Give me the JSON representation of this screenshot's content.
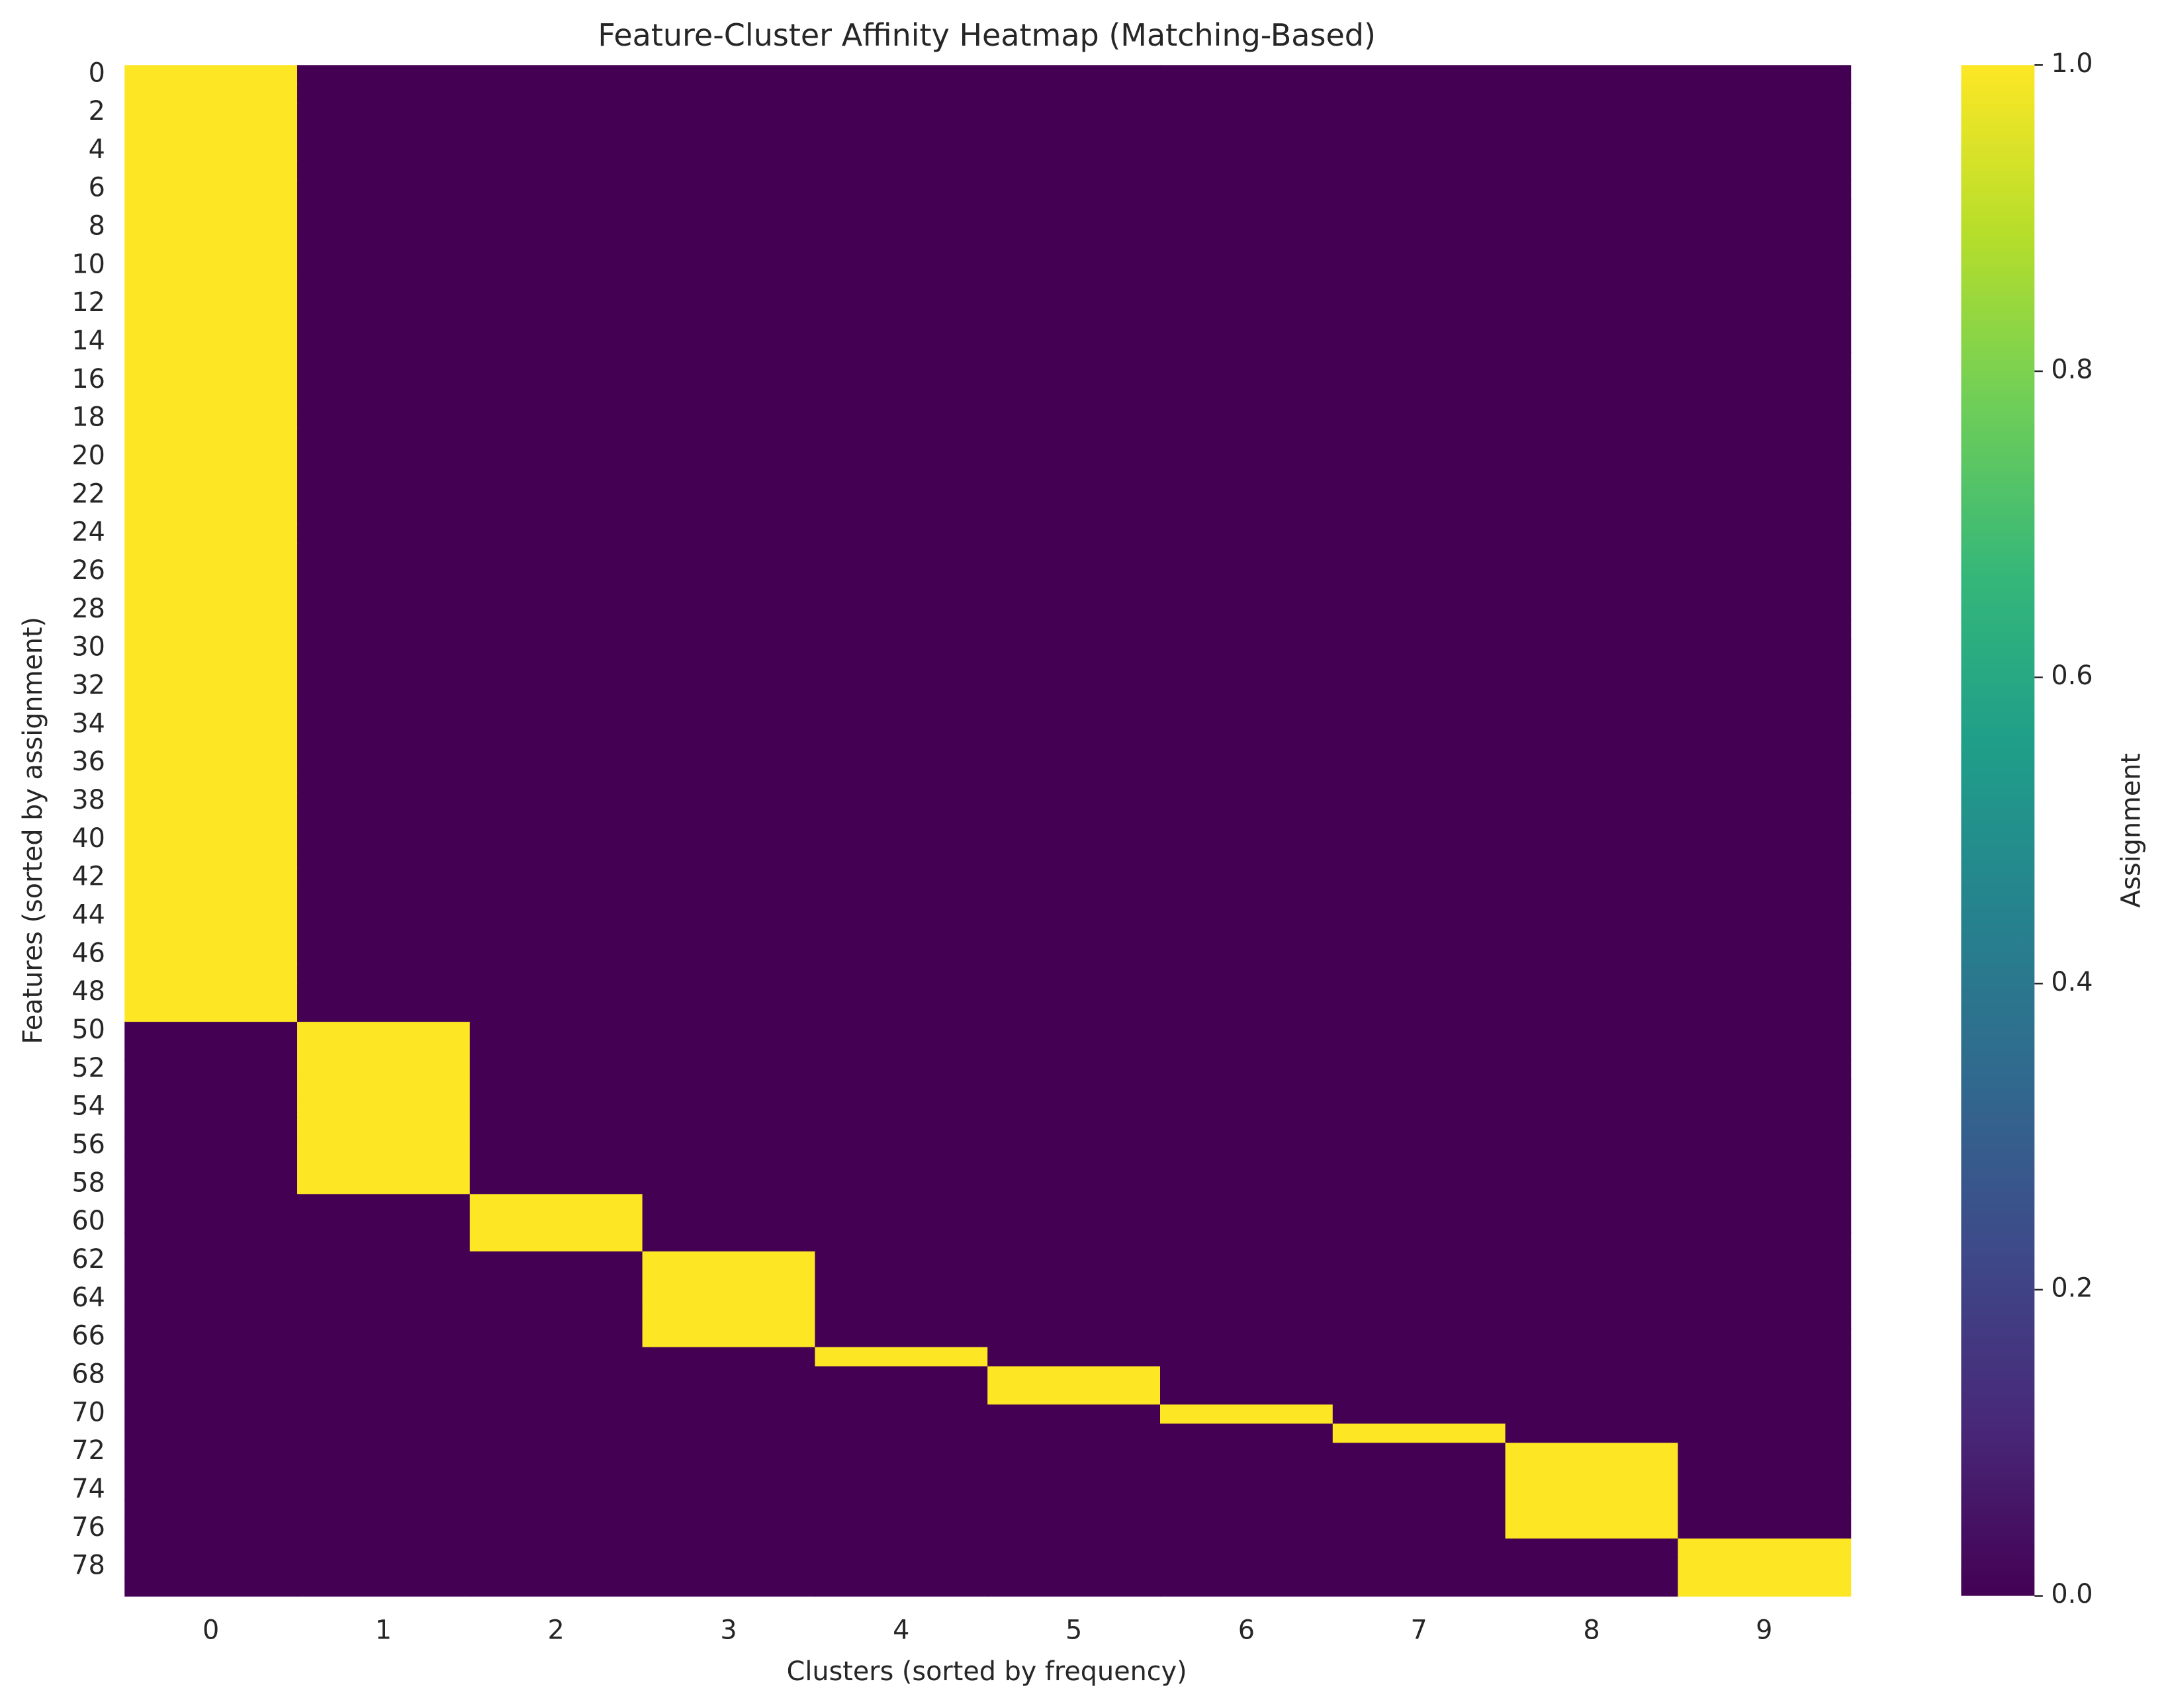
{
  "chart_data": {
    "type": "heatmap",
    "title": "Feature-Cluster Affinity Heatmap (Matching-Based)",
    "x_label": "Clusters (sorted by frequency)",
    "y_label": "Features (sorted by assignment)",
    "colorbar_label": "Assignment",
    "colormap": "viridis",
    "zlim": [
      0,
      1
    ],
    "zticks": [
      {
        "value": 0,
        "label": "0.0"
      },
      {
        "value": 0.2,
        "label": "0.2"
      },
      {
        "value": 0.4,
        "label": "0.4"
      },
      {
        "value": 0.6,
        "label": "0.6"
      },
      {
        "value": 0.8,
        "label": "0.8"
      },
      {
        "value": 1,
        "label": "1.0"
      }
    ],
    "x_categories": [
      "0",
      "1",
      "2",
      "3",
      "4",
      "5",
      "6",
      "7",
      "8",
      "9"
    ],
    "y_categories": [
      "0",
      null,
      "2",
      null,
      "4",
      null,
      "6",
      null,
      "8",
      null,
      "10",
      null,
      "12",
      null,
      "14",
      null,
      "16",
      null,
      "18",
      null,
      "20",
      null,
      "22",
      null,
      "24",
      null,
      "26",
      null,
      "28",
      null,
      "30",
      null,
      "32",
      null,
      "34",
      null,
      "36",
      null,
      "38",
      null,
      "40",
      null,
      "42",
      null,
      "44",
      null,
      "46",
      null,
      "48",
      null,
      "50",
      null,
      "52",
      null,
      "54",
      null,
      "56",
      null,
      "58",
      null,
      "60",
      null,
      "62",
      null,
      "64",
      null,
      "66",
      null,
      "68",
      null,
      "70",
      null,
      "72",
      null,
      "74",
      null,
      "76",
      null,
      "78",
      null
    ],
    "values": [
      [
        1,
        0,
        0,
        0,
        0,
        0,
        0,
        0,
        0,
        0
      ],
      [
        1,
        0,
        0,
        0,
        0,
        0,
        0,
        0,
        0,
        0
      ],
      [
        1,
        0,
        0,
        0,
        0,
        0,
        0,
        0,
        0,
        0
      ],
      [
        1,
        0,
        0,
        0,
        0,
        0,
        0,
        0,
        0,
        0
      ],
      [
        1,
        0,
        0,
        0,
        0,
        0,
        0,
        0,
        0,
        0
      ],
      [
        1,
        0,
        0,
        0,
        0,
        0,
        0,
        0,
        0,
        0
      ],
      [
        1,
        0,
        0,
        0,
        0,
        0,
        0,
        0,
        0,
        0
      ],
      [
        1,
        0,
        0,
        0,
        0,
        0,
        0,
        0,
        0,
        0
      ],
      [
        1,
        0,
        0,
        0,
        0,
        0,
        0,
        0,
        0,
        0
      ],
      [
        1,
        0,
        0,
        0,
        0,
        0,
        0,
        0,
        0,
        0
      ],
      [
        1,
        0,
        0,
        0,
        0,
        0,
        0,
        0,
        0,
        0
      ],
      [
        1,
        0,
        0,
        0,
        0,
        0,
        0,
        0,
        0,
        0
      ],
      [
        1,
        0,
        0,
        0,
        0,
        0,
        0,
        0,
        0,
        0
      ],
      [
        1,
        0,
        0,
        0,
        0,
        0,
        0,
        0,
        0,
        0
      ],
      [
        1,
        0,
        0,
        0,
        0,
        0,
        0,
        0,
        0,
        0
      ],
      [
        1,
        0,
        0,
        0,
        0,
        0,
        0,
        0,
        0,
        0
      ],
      [
        1,
        0,
        0,
        0,
        0,
        0,
        0,
        0,
        0,
        0
      ],
      [
        1,
        0,
        0,
        0,
        0,
        0,
        0,
        0,
        0,
        0
      ],
      [
        1,
        0,
        0,
        0,
        0,
        0,
        0,
        0,
        0,
        0
      ],
      [
        1,
        0,
        0,
        0,
        0,
        0,
        0,
        0,
        0,
        0
      ],
      [
        1,
        0,
        0,
        0,
        0,
        0,
        0,
        0,
        0,
        0
      ],
      [
        1,
        0,
        0,
        0,
        0,
        0,
        0,
        0,
        0,
        0
      ],
      [
        1,
        0,
        0,
        0,
        0,
        0,
        0,
        0,
        0,
        0
      ],
      [
        1,
        0,
        0,
        0,
        0,
        0,
        0,
        0,
        0,
        0
      ],
      [
        1,
        0,
        0,
        0,
        0,
        0,
        0,
        0,
        0,
        0
      ],
      [
        1,
        0,
        0,
        0,
        0,
        0,
        0,
        0,
        0,
        0
      ],
      [
        1,
        0,
        0,
        0,
        0,
        0,
        0,
        0,
        0,
        0
      ],
      [
        1,
        0,
        0,
        0,
        0,
        0,
        0,
        0,
        0,
        0
      ],
      [
        1,
        0,
        0,
        0,
        0,
        0,
        0,
        0,
        0,
        0
      ],
      [
        1,
        0,
        0,
        0,
        0,
        0,
        0,
        0,
        0,
        0
      ],
      [
        1,
        0,
        0,
        0,
        0,
        0,
        0,
        0,
        0,
        0
      ],
      [
        1,
        0,
        0,
        0,
        0,
        0,
        0,
        0,
        0,
        0
      ],
      [
        1,
        0,
        0,
        0,
        0,
        0,
        0,
        0,
        0,
        0
      ],
      [
        1,
        0,
        0,
        0,
        0,
        0,
        0,
        0,
        0,
        0
      ],
      [
        1,
        0,
        0,
        0,
        0,
        0,
        0,
        0,
        0,
        0
      ],
      [
        1,
        0,
        0,
        0,
        0,
        0,
        0,
        0,
        0,
        0
      ],
      [
        1,
        0,
        0,
        0,
        0,
        0,
        0,
        0,
        0,
        0
      ],
      [
        1,
        0,
        0,
        0,
        0,
        0,
        0,
        0,
        0,
        0
      ],
      [
        1,
        0,
        0,
        0,
        0,
        0,
        0,
        0,
        0,
        0
      ],
      [
        1,
        0,
        0,
        0,
        0,
        0,
        0,
        0,
        0,
        0
      ],
      [
        1,
        0,
        0,
        0,
        0,
        0,
        0,
        0,
        0,
        0
      ],
      [
        1,
        0,
        0,
        0,
        0,
        0,
        0,
        0,
        0,
        0
      ],
      [
        1,
        0,
        0,
        0,
        0,
        0,
        0,
        0,
        0,
        0
      ],
      [
        1,
        0,
        0,
        0,
        0,
        0,
        0,
        0,
        0,
        0
      ],
      [
        1,
        0,
        0,
        0,
        0,
        0,
        0,
        0,
        0,
        0
      ],
      [
        1,
        0,
        0,
        0,
        0,
        0,
        0,
        0,
        0,
        0
      ],
      [
        1,
        0,
        0,
        0,
        0,
        0,
        0,
        0,
        0,
        0
      ],
      [
        1,
        0,
        0,
        0,
        0,
        0,
        0,
        0,
        0,
        0
      ],
      [
        1,
        0,
        0,
        0,
        0,
        0,
        0,
        0,
        0,
        0
      ],
      [
        1,
        0,
        0,
        0,
        0,
        0,
        0,
        0,
        0,
        0
      ],
      [
        0,
        1,
        0,
        0,
        0,
        0,
        0,
        0,
        0,
        0
      ],
      [
        0,
        1,
        0,
        0,
        0,
        0,
        0,
        0,
        0,
        0
      ],
      [
        0,
        1,
        0,
        0,
        0,
        0,
        0,
        0,
        0,
        0
      ],
      [
        0,
        1,
        0,
        0,
        0,
        0,
        0,
        0,
        0,
        0
      ],
      [
        0,
        1,
        0,
        0,
        0,
        0,
        0,
        0,
        0,
        0
      ],
      [
        0,
        1,
        0,
        0,
        0,
        0,
        0,
        0,
        0,
        0
      ],
      [
        0,
        1,
        0,
        0,
        0,
        0,
        0,
        0,
        0,
        0
      ],
      [
        0,
        1,
        0,
        0,
        0,
        0,
        0,
        0,
        0,
        0
      ],
      [
        0,
        1,
        0,
        0,
        0,
        0,
        0,
        0,
        0,
        0
      ],
      [
        0,
        0,
        1,
        0,
        0,
        0,
        0,
        0,
        0,
        0
      ],
      [
        0,
        0,
        1,
        0,
        0,
        0,
        0,
        0,
        0,
        0
      ],
      [
        0,
        0,
        1,
        0,
        0,
        0,
        0,
        0,
        0,
        0
      ],
      [
        0,
        0,
        0,
        1,
        0,
        0,
        0,
        0,
        0,
        0
      ],
      [
        0,
        0,
        0,
        1,
        0,
        0,
        0,
        0,
        0,
        0
      ],
      [
        0,
        0,
        0,
        1,
        0,
        0,
        0,
        0,
        0,
        0
      ],
      [
        0,
        0,
        0,
        1,
        0,
        0,
        0,
        0,
        0,
        0
      ],
      [
        0,
        0,
        0,
        1,
        0,
        0,
        0,
        0,
        0,
        0
      ],
      [
        0,
        0,
        0,
        0,
        1,
        0,
        0,
        0,
        0,
        0
      ],
      [
        0,
        0,
        0,
        0,
        0,
        1,
        0,
        0,
        0,
        0
      ],
      [
        0,
        0,
        0,
        0,
        0,
        1,
        0,
        0,
        0,
        0
      ],
      [
        0,
        0,
        0,
        0,
        0,
        0,
        1,
        0,
        0,
        0
      ],
      [
        0,
        0,
        0,
        0,
        0,
        0,
        0,
        1,
        0,
        0
      ],
      [
        0,
        0,
        0,
        0,
        0,
        0,
        0,
        0,
        1,
        0
      ],
      [
        0,
        0,
        0,
        0,
        0,
        0,
        0,
        0,
        1,
        0
      ],
      [
        0,
        0,
        0,
        0,
        0,
        0,
        0,
        0,
        1,
        0
      ],
      [
        0,
        0,
        0,
        0,
        0,
        0,
        0,
        0,
        1,
        0
      ],
      [
        0,
        0,
        0,
        0,
        0,
        0,
        0,
        0,
        1,
        0
      ],
      [
        0,
        0,
        0,
        0,
        0,
        0,
        0,
        0,
        0,
        1
      ],
      [
        0,
        0,
        0,
        0,
        0,
        0,
        0,
        0,
        0,
        1
      ],
      [
        0,
        0,
        0,
        0,
        0,
        0,
        0,
        0,
        0,
        1
      ]
    ]
  }
}
